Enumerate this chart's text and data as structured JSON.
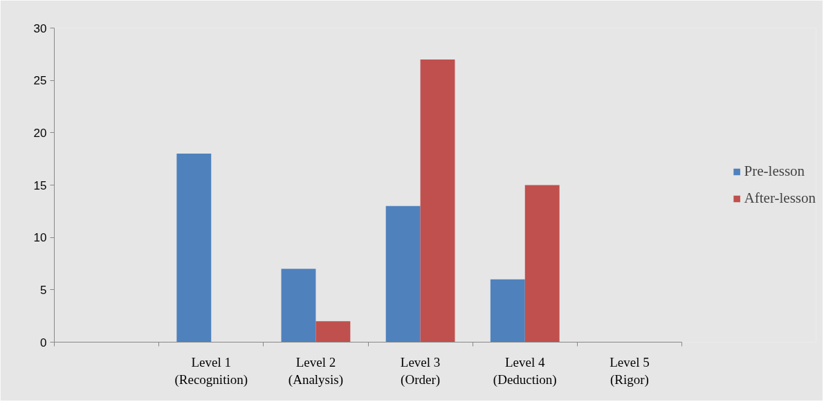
{
  "chart_data": {
    "type": "bar",
    "categories": [
      null,
      "Level 1\n(Recognition)",
      "Level 2\n(Analysis)",
      "Level 3\n(Order)",
      "Level 4\n(Deduction)",
      "Level 5\n(Rigor)"
    ],
    "series": [
      {
        "name": "Pre-lesson",
        "color": "#4f81bd",
        "values": [
          0,
          18,
          7,
          13,
          6,
          0
        ]
      },
      {
        "name": "After-lesson",
        "color": "#c0504d",
        "values": [
          0,
          0,
          2,
          27,
          15,
          0
        ]
      }
    ],
    "ylim": [
      0,
      30
    ],
    "yticks": [
      0,
      5,
      10,
      15,
      20,
      25,
      30
    ],
    "legend": "right"
  }
}
